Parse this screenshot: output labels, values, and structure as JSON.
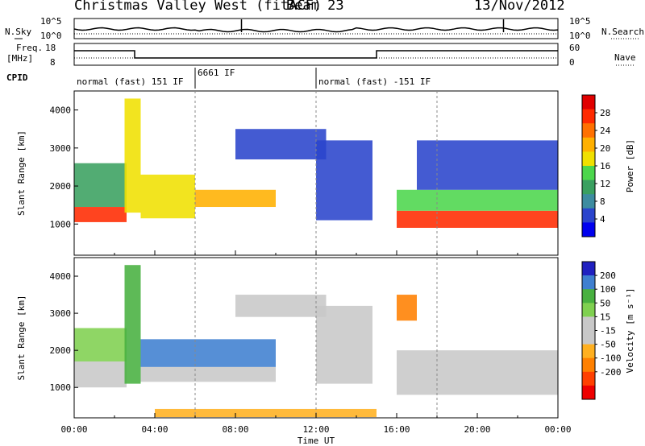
{
  "header": {
    "title": "Christmas Valley West (fitACF)",
    "beam": "Beam 23",
    "date": "13/Nov/2012"
  },
  "top_panels": {
    "nsky_label": "N.Sky",
    "nsky_ticks": [
      "10^5",
      "10^0"
    ],
    "nsearch_label": "N.Search",
    "nsearch_ticks": [
      "10^5",
      "10^0"
    ],
    "freq_label": "Freq.",
    "freq_unit": "[MHz]",
    "freq_ticks": [
      "18",
      "8"
    ],
    "nave_label": "Nave",
    "nave_ticks": [
      "60",
      "0"
    ],
    "cpid_label": "CPID",
    "cpid_segments": [
      {
        "label": "normal (fast) 151 IF",
        "start_hour": 0
      },
      {
        "label": "6661 IF",
        "start_hour": 6
      },
      {
        "label": "normal (fast) -151 IF",
        "start_hour": 12
      }
    ]
  },
  "colors": {
    "power_scale": [
      "#0000ee",
      "#2a44cc",
      "#3d8ca0",
      "#3aa060",
      "#4cd64c",
      "#f0e000",
      "#ffb000",
      "#ff7000",
      "#ff2a00",
      "#e00000"
    ],
    "velocity_scale": [
      "#2020c0",
      "#3f7fd0",
      "#48b040",
      "#7fd050",
      "#c8c8c8",
      "#c8c8c8",
      "#ffb020",
      "#ff8000",
      "#ff4000",
      "#ee0000"
    ]
  },
  "chart_data": [
    {
      "type": "heatmap",
      "title": "Power",
      "xlabel": "Time UT",
      "ylabel": "Slant Range [km]",
      "x_ticks": [
        "00:00",
        "04:00",
        "08:00",
        "12:00",
        "16:00",
        "20:00",
        "00:00"
      ],
      "xlim_hours": [
        0,
        24
      ],
      "y_ticks": [
        1000,
        2000,
        3000,
        4000
      ],
      "ylim": [
        180,
        4500
      ],
      "colorbar_label": "Power [dB]",
      "colorbar_ticks": [
        4,
        8,
        12,
        16,
        20,
        24,
        28
      ],
      "regions": [
        {
          "t0": 0.0,
          "t1": 2.6,
          "r0": 1050,
          "r1": 1450,
          "level": 26
        },
        {
          "t0": 0.0,
          "t1": 2.6,
          "r0": 1450,
          "r1": 2600,
          "level": 12
        },
        {
          "t0": 2.5,
          "t1": 3.3,
          "r0": 1300,
          "r1": 4300,
          "level": 18
        },
        {
          "t0": 3.3,
          "t1": 6.0,
          "r0": 1150,
          "r1": 2300,
          "level": 18
        },
        {
          "t0": 6.0,
          "t1": 10.0,
          "r0": 1450,
          "r1": 1900,
          "level": 22
        },
        {
          "t0": 8.0,
          "t1": 12.5,
          "r0": 2700,
          "r1": 3500,
          "level": 6
        },
        {
          "t0": 12.0,
          "t1": 14.8,
          "r0": 1100,
          "r1": 3200,
          "level": 6
        },
        {
          "t0": 16.0,
          "t1": 24.0,
          "r0": 900,
          "r1": 1350,
          "level": 28
        },
        {
          "t0": 16.0,
          "t1": 24.0,
          "r0": 1350,
          "r1": 1900,
          "level": 14
        },
        {
          "t0": 17.0,
          "t1": 24.0,
          "r0": 1900,
          "r1": 3200,
          "level": 6
        }
      ]
    },
    {
      "type": "heatmap",
      "title": "Velocity",
      "xlabel": "Time UT",
      "ylabel": "Slant Range [km]",
      "x_ticks": [
        "00:00",
        "04:00",
        "08:00",
        "12:00",
        "16:00",
        "20:00",
        "00:00"
      ],
      "xlim_hours": [
        0,
        24
      ],
      "y_ticks": [
        1000,
        2000,
        3000,
        4000
      ],
      "ylim": [
        180,
        4500
      ],
      "colorbar_label": "Velocity [m s⁻¹]",
      "colorbar_ticks": [
        200,
        100,
        50,
        15,
        -15,
        -50,
        -100,
        -200
      ],
      "regions": [
        {
          "t0": 0.0,
          "t1": 2.6,
          "r0": 1000,
          "r1": 1700,
          "level": 0
        },
        {
          "t0": 0.0,
          "t1": 2.6,
          "r0": 1700,
          "r1": 2600,
          "level": 40
        },
        {
          "t0": 2.5,
          "t1": 3.3,
          "r0": 1100,
          "r1": 4300,
          "level": 60
        },
        {
          "t0": 3.3,
          "t1": 10.0,
          "r0": 1550,
          "r1": 2300,
          "level": 120
        },
        {
          "t0": 3.3,
          "t1": 10.0,
          "r0": 1150,
          "r1": 1550,
          "level": 0
        },
        {
          "t0": 8.0,
          "t1": 12.5,
          "r0": 2900,
          "r1": 3500,
          "level": 0
        },
        {
          "t0": 12.0,
          "t1": 14.8,
          "r0": 1100,
          "r1": 3200,
          "level": 0
        },
        {
          "t0": 16.0,
          "t1": 24.0,
          "r0": 800,
          "r1": 2000,
          "level": 0
        },
        {
          "t0": 16.0,
          "t1": 17.0,
          "r0": 2800,
          "r1": 3500,
          "level": -150
        },
        {
          "t0": 4.0,
          "t1": 15.0,
          "r0": 200,
          "r1": 420,
          "level": -60
        }
      ]
    }
  ]
}
